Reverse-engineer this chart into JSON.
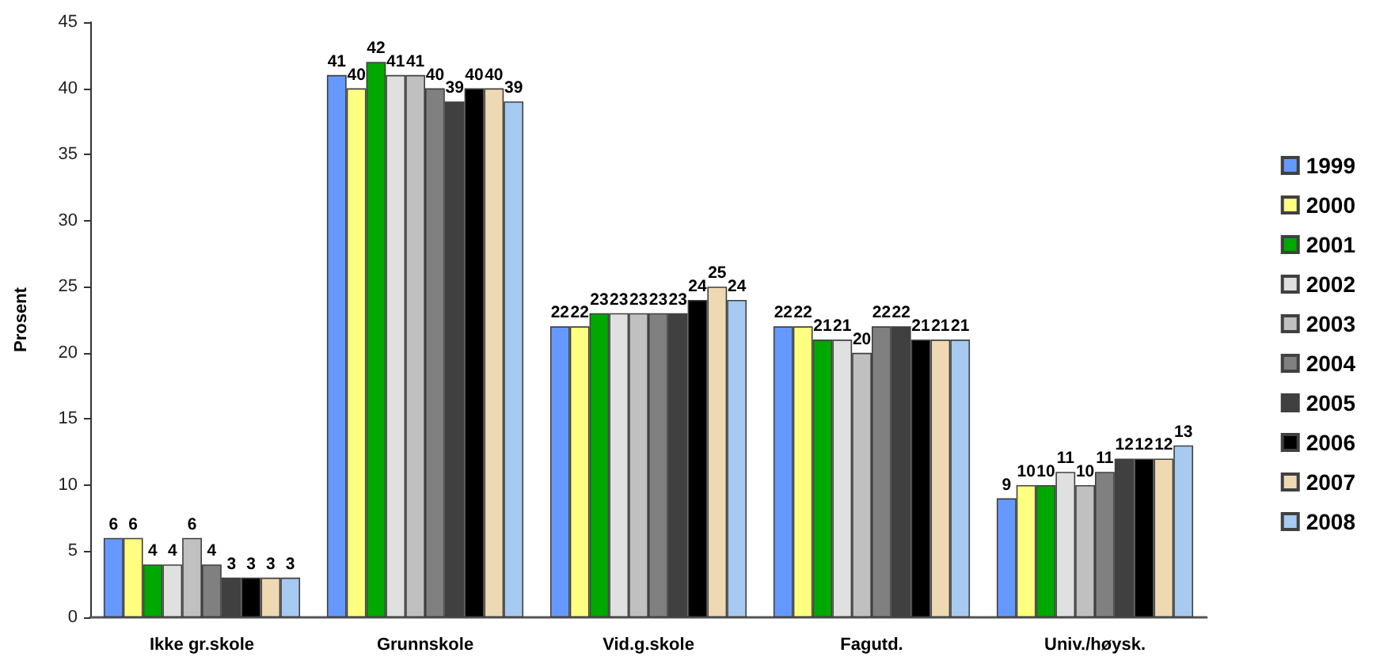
{
  "chart_data": {
    "type": "bar",
    "ylabel": "Prosent",
    "categories": [
      "Ikke gr.skole",
      "Grunnskole",
      "Vid.g.skole",
      "Fagutd.",
      "Univ./høysk."
    ],
    "series": [
      {
        "name": "1999",
        "color": "#6699ff",
        "values": [
          6,
          41,
          22,
          22,
          9
        ]
      },
      {
        "name": "2000",
        "color": "#ffff80",
        "values": [
          6,
          40,
          22,
          22,
          10
        ]
      },
      {
        "name": "2001",
        "color": "#00a800",
        "values": [
          4,
          42,
          23,
          21,
          10
        ]
      },
      {
        "name": "2002",
        "color": "#e0e0e0",
        "values": [
          4,
          41,
          23,
          21,
          11
        ]
      },
      {
        "name": "2003",
        "color": "#c0c0c0",
        "values": [
          6,
          41,
          23,
          20,
          10
        ]
      },
      {
        "name": "2004",
        "color": "#808080",
        "values": [
          4,
          40,
          23,
          22,
          11
        ]
      },
      {
        "name": "2005",
        "color": "#404040",
        "values": [
          3,
          39,
          23,
          22,
          12
        ]
      },
      {
        "name": "2006",
        "color": "#000000",
        "values": [
          3,
          40,
          24,
          21,
          12
        ]
      },
      {
        "name": "2007",
        "color": "#eed9b2",
        "values": [
          3,
          40,
          25,
          21,
          12
        ]
      },
      {
        "name": "2008",
        "color": "#a6caf0",
        "values": [
          3,
          39,
          24,
          21,
          13
        ]
      }
    ],
    "ylim": [
      0,
      45
    ],
    "yticks": [
      0,
      5,
      10,
      15,
      20,
      25,
      30,
      35,
      40,
      45
    ],
    "grid": false,
    "legend": "right",
    "data_labels": true
  }
}
